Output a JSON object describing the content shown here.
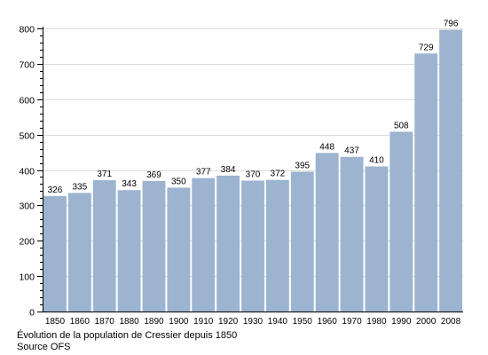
{
  "chart_data": {
    "type": "bar",
    "categories": [
      "1850",
      "1860",
      "1870",
      "1880",
      "1890",
      "1900",
      "1910",
      "1920",
      "1930",
      "1940",
      "1950",
      "1960",
      "1970",
      "1980",
      "1990",
      "2000",
      "2008"
    ],
    "values": [
      326,
      335,
      371,
      343,
      369,
      350,
      377,
      384,
      370,
      372,
      395,
      448,
      437,
      410,
      508,
      729,
      796
    ],
    "data_labels": [
      "326",
      "335",
      "371",
      "343",
      "369",
      "350",
      "377",
      "384",
      "370",
      "372",
      "395",
      "448",
      "437",
      "410",
      "508",
      "729",
      "796"
    ],
    "ylim": [
      0,
      800
    ],
    "y_ticks": [
      0,
      100,
      200,
      300,
      400,
      500,
      600,
      700,
      800
    ],
    "y_tick_labels": [
      "0",
      "100",
      "200",
      "300",
      "400",
      "500",
      "600",
      "700",
      "800"
    ],
    "y_minor_step": 20,
    "grid": true,
    "bar_color": "#9cb4cf",
    "grid_color": "#dcdcdc",
    "title": "",
    "xlabel": "",
    "ylabel": ""
  },
  "caption": {
    "line1": "Évolution de la population de Cressier depuis 1850",
    "line2": "Source OFS"
  }
}
